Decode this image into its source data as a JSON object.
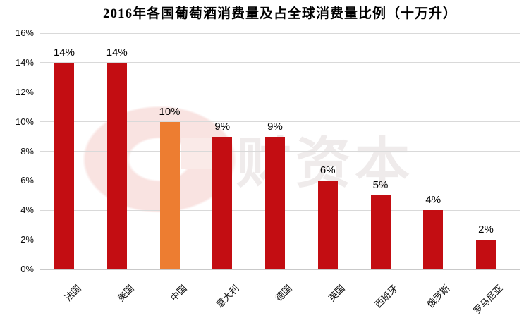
{
  "title": "2016年各国葡萄酒消费量及占全球消费量比例（十万升）",
  "watermark": {
    "text": "财资本",
    "logo": "pink-ring-logo"
  },
  "chart_data": {
    "type": "bar",
    "title": "2016年各国葡萄酒消费量及占全球消费量比例（十万升）",
    "categories": [
      "法国",
      "美国",
      "中国",
      "意大利",
      "德国",
      "英国",
      "西班牙",
      "俄罗斯",
      "罗马尼亚"
    ],
    "values": [
      14,
      14,
      10,
      9,
      9,
      6,
      5,
      4,
      2
    ],
    "value_labels": [
      "14%",
      "14%",
      "10%",
      "9%",
      "9%",
      "6%",
      "5%",
      "4%",
      "2%"
    ],
    "bar_colors": [
      "#c30d12",
      "#c30d12",
      "#ed7d31",
      "#c30d12",
      "#c30d12",
      "#c30d12",
      "#c30d12",
      "#c30d12",
      "#c30d12"
    ],
    "highlighted_category": "中国",
    "xlabel": "",
    "ylabel": "",
    "ylim": [
      0,
      16
    ],
    "ytick_step": 2,
    "ytick_labels": [
      "0%",
      "2%",
      "4%",
      "6%",
      "8%",
      "10%",
      "12%",
      "14%",
      "16%"
    ],
    "grid": true,
    "legend_position": "none"
  },
  "colors": {
    "bar_red": "#c30d12",
    "bar_orange": "#ed7d31",
    "gridline": "#d9d9d9",
    "text": "#000000",
    "watermark_text": "#efebeb",
    "watermark_logo": "#f9e3e1",
    "background": "#ffffff"
  }
}
